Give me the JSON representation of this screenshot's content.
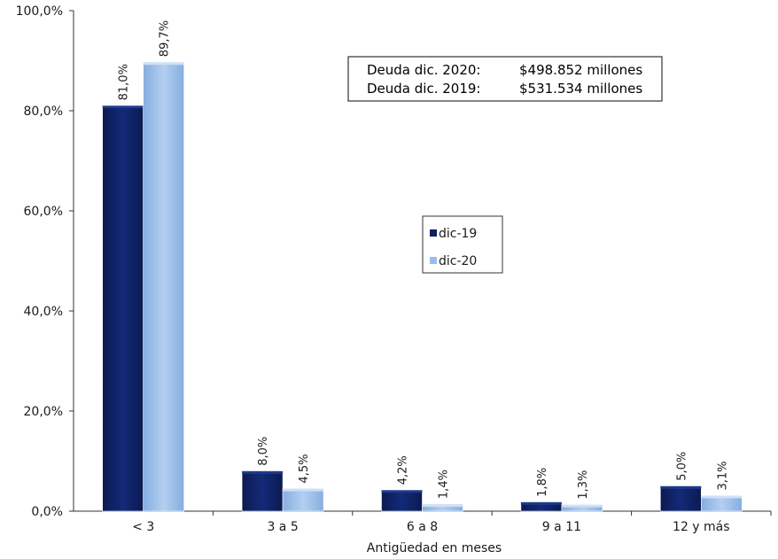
{
  "info_box": {
    "line1_label": "Deuda dic. 2020:",
    "line1_value": "$498.852 millones",
    "line2_label": "Deuda dic. 2019:",
    "line2_value": "$531.534 millones"
  },
  "chart_data": {
    "type": "bar",
    "xlabel": "Antigüedad en meses",
    "ylabel": "",
    "ylim": [
      0,
      100
    ],
    "yticks": [
      "0,0%",
      "20,0%",
      "40,0%",
      "60,0%",
      "80,0%",
      "100,0%"
    ],
    "ytick_values": [
      0,
      20,
      40,
      60,
      80,
      100
    ],
    "categories": [
      "< 3",
      "3 a 5",
      "6 a 8",
      "9 a 11",
      "12 y más"
    ],
    "series": [
      {
        "name": "dic-19",
        "color": "#0d1f5c",
        "values": [
          81.0,
          8.0,
          4.2,
          1.8,
          5.0
        ],
        "labels": [
          "81,0%",
          "8,0%",
          "4,2%",
          "1,8%",
          "5,0%"
        ]
      },
      {
        "name": "dic-20",
        "color": "#99bde8",
        "values": [
          89.7,
          4.5,
          1.4,
          1.3,
          3.1
        ],
        "labels": [
          "89,7%",
          "4,5%",
          "1,4%",
          "1,3%",
          "3,1%"
        ]
      }
    ],
    "legend_position": "center",
    "grid": false
  }
}
